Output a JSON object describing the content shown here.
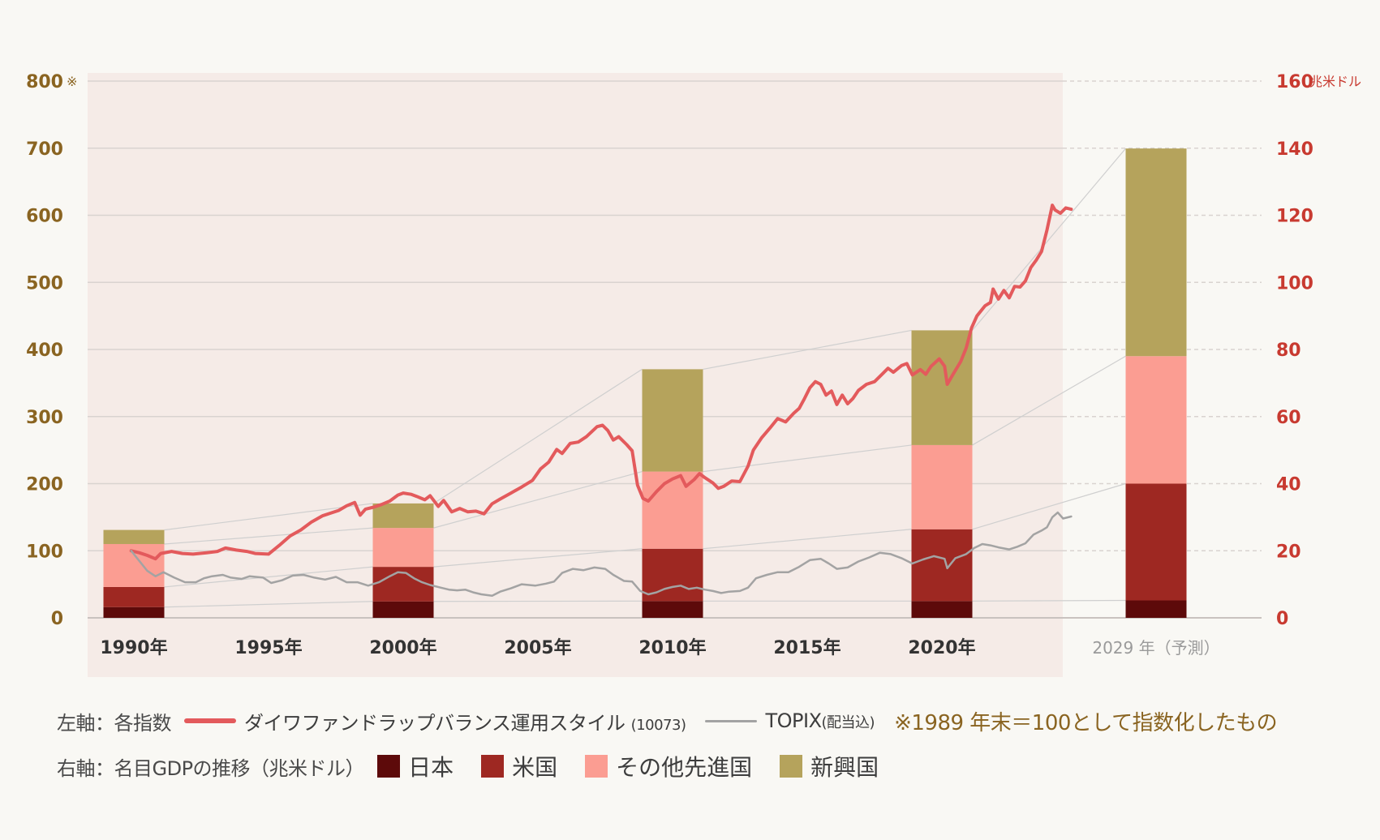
{
  "chart_data": {
    "type": "line+stacked-bar",
    "left_axis": {
      "ticks": [
        0,
        100,
        200,
        300,
        400,
        500,
        600,
        700,
        800
      ],
      "top_label_suffix": "※",
      "ylim": [
        0,
        800
      ]
    },
    "right_axis": {
      "ticks": [
        0,
        20,
        40,
        60,
        80,
        100,
        120,
        140,
        160
      ],
      "unit": "兆米ドル",
      "ylim": [
        0,
        160
      ]
    },
    "x_ticks": [
      {
        "year": 1990,
        "label": "1990年"
      },
      {
        "year": 1995,
        "label": "1995年"
      },
      {
        "year": 2000,
        "label": "2000年"
      },
      {
        "year": 2005,
        "label": "2005年"
      },
      {
        "year": 2010,
        "label": "2010年"
      },
      {
        "year": 2015,
        "label": "2015年"
      },
      {
        "year": 2020,
        "label": "2020年"
      }
    ],
    "forecast_label": "2029 年（予測）",
    "lines": [
      {
        "name": "ダイワファンドラップバランス運用スタイル",
        "code": "(10073)",
        "color": "#e35a5c",
        "points": [
          [
            1989.9,
            100
          ],
          [
            1990.2,
            97
          ],
          [
            1990.5,
            93
          ],
          [
            1990.8,
            88
          ],
          [
            1991.0,
            96
          ],
          [
            1991.4,
            99
          ],
          [
            1991.8,
            96
          ],
          [
            1992.2,
            95
          ],
          [
            1992.7,
            97
          ],
          [
            1993.1,
            99
          ],
          [
            1993.4,
            104
          ],
          [
            1993.8,
            101
          ],
          [
            1994.2,
            99
          ],
          [
            1994.5,
            96
          ],
          [
            1995.0,
            95
          ],
          [
            1995.4,
            108
          ],
          [
            1995.8,
            122
          ],
          [
            1996.2,
            131
          ],
          [
            1996.6,
            143
          ],
          [
            1997.0,
            152
          ],
          [
            1997.3,
            156
          ],
          [
            1997.6,
            160
          ],
          [
            1997.9,
            167
          ],
          [
            1998.2,
            172
          ],
          [
            1998.4,
            153
          ],
          [
            1998.6,
            162
          ],
          [
            1998.9,
            165
          ],
          [
            1999.2,
            169
          ],
          [
            1999.5,
            174
          ],
          [
            1999.8,
            183
          ],
          [
            2000.0,
            186
          ],
          [
            2000.3,
            184
          ],
          [
            2000.5,
            181
          ],
          [
            2000.8,
            176
          ],
          [
            2001.0,
            182
          ],
          [
            2001.3,
            166
          ],
          [
            2001.5,
            175
          ],
          [
            2001.8,
            158
          ],
          [
            2002.1,
            163
          ],
          [
            2002.4,
            158
          ],
          [
            2002.7,
            159
          ],
          [
            2003.0,
            155
          ],
          [
            2003.3,
            170
          ],
          [
            2003.6,
            177
          ],
          [
            2004.0,
            186
          ],
          [
            2004.4,
            195
          ],
          [
            2004.8,
            205
          ],
          [
            2005.1,
            222
          ],
          [
            2005.4,
            232
          ],
          [
            2005.7,
            251
          ],
          [
            2005.9,
            245
          ],
          [
            2006.2,
            260
          ],
          [
            2006.5,
            262
          ],
          [
            2006.8,
            270
          ],
          [
            2007.2,
            285
          ],
          [
            2007.4,
            287
          ],
          [
            2007.6,
            279
          ],
          [
            2007.8,
            265
          ],
          [
            2008.0,
            270
          ],
          [
            2008.3,
            258
          ],
          [
            2008.5,
            249
          ],
          [
            2008.7,
            198
          ],
          [
            2008.9,
            178
          ],
          [
            2009.1,
            174
          ],
          [
            2009.4,
            188
          ],
          [
            2009.7,
            200
          ],
          [
            2010.0,
            207
          ],
          [
            2010.3,
            212
          ],
          [
            2010.5,
            196
          ],
          [
            2010.8,
            206
          ],
          [
            2011.0,
            215
          ],
          [
            2011.2,
            209
          ],
          [
            2011.5,
            201
          ],
          [
            2011.7,
            193
          ],
          [
            2011.9,
            196
          ],
          [
            2012.2,
            204
          ],
          [
            2012.5,
            203
          ],
          [
            2012.8,
            226
          ],
          [
            2013.0,
            250
          ],
          [
            2013.3,
            268
          ],
          [
            2013.6,
            282
          ],
          [
            2013.9,
            297
          ],
          [
            2014.2,
            292
          ],
          [
            2014.5,
            305
          ],
          [
            2014.7,
            312
          ],
          [
            2014.9,
            327
          ],
          [
            2015.1,
            343
          ],
          [
            2015.3,
            352
          ],
          [
            2015.5,
            348
          ],
          [
            2015.7,
            332
          ],
          [
            2015.9,
            338
          ],
          [
            2016.1,
            318
          ],
          [
            2016.3,
            332
          ],
          [
            2016.5,
            319
          ],
          [
            2016.7,
            327
          ],
          [
            2016.9,
            339
          ],
          [
            2017.2,
            348
          ],
          [
            2017.5,
            352
          ],
          [
            2017.8,
            364
          ],
          [
            2018.0,
            372
          ],
          [
            2018.2,
            366
          ],
          [
            2018.5,
            376
          ],
          [
            2018.7,
            379
          ],
          [
            2018.9,
            362
          ],
          [
            2019.2,
            370
          ],
          [
            2019.4,
            363
          ],
          [
            2019.6,
            375
          ],
          [
            2019.9,
            386
          ],
          [
            2020.1,
            375
          ],
          [
            2020.2,
            348
          ],
          [
            2020.4,
            362
          ],
          [
            2020.7,
            382
          ],
          [
            2020.9,
            402
          ],
          [
            2021.1,
            432
          ],
          [
            2021.3,
            450
          ],
          [
            2021.6,
            465
          ],
          [
            2021.8,
            470
          ],
          [
            2021.9,
            490
          ],
          [
            2022.1,
            475
          ],
          [
            2022.3,
            488
          ],
          [
            2022.5,
            477
          ],
          [
            2022.7,
            494
          ],
          [
            2022.9,
            493
          ],
          [
            2023.1,
            502
          ],
          [
            2023.3,
            522
          ],
          [
            2023.5,
            533
          ],
          [
            2023.7,
            546
          ],
          [
            2023.9,
            578
          ],
          [
            2024.1,
            615
          ],
          [
            2024.2,
            608
          ],
          [
            2024.4,
            603
          ],
          [
            2024.6,
            611
          ],
          [
            2024.8,
            609
          ]
        ]
      },
      {
        "name": "TOPIX",
        "name_suffix": "(配当込)",
        "color": "#a3a3a3",
        "points": [
          [
            1989.9,
            100
          ],
          [
            1990.2,
            85
          ],
          [
            1990.5,
            70
          ],
          [
            1990.8,
            62
          ],
          [
            1991.1,
            68
          ],
          [
            1991.5,
            60
          ],
          [
            1991.9,
            53
          ],
          [
            1992.3,
            53
          ],
          [
            1992.6,
            59
          ],
          [
            1992.9,
            62
          ],
          [
            1993.3,
            64
          ],
          [
            1993.6,
            60
          ],
          [
            1994.0,
            58
          ],
          [
            1994.3,
            62
          ],
          [
            1994.8,
            60
          ],
          [
            1995.1,
            52
          ],
          [
            1995.5,
            56
          ],
          [
            1995.9,
            63
          ],
          [
            1996.3,
            64
          ],
          [
            1996.7,
            60
          ],
          [
            1997.1,
            57
          ],
          [
            1997.5,
            61
          ],
          [
            1997.9,
            53
          ],
          [
            1998.3,
            53
          ],
          [
            1998.7,
            48
          ],
          [
            1999.1,
            53
          ],
          [
            1999.5,
            62
          ],
          [
            1999.8,
            68
          ],
          [
            2000.1,
            67
          ],
          [
            2000.4,
            59
          ],
          [
            2000.7,
            53
          ],
          [
            2001.0,
            49
          ],
          [
            2001.4,
            45
          ],
          [
            2001.7,
            42
          ],
          [
            2002.0,
            41
          ],
          [
            2002.3,
            42
          ],
          [
            2002.6,
            38
          ],
          [
            2002.9,
            35
          ],
          [
            2003.3,
            33
          ],
          [
            2003.6,
            39
          ],
          [
            2004.0,
            44
          ],
          [
            2004.4,
            50
          ],
          [
            2004.9,
            48
          ],
          [
            2005.3,
            51
          ],
          [
            2005.6,
            54
          ],
          [
            2005.9,
            67
          ],
          [
            2006.3,
            73
          ],
          [
            2006.7,
            71
          ],
          [
            2007.1,
            75
          ],
          [
            2007.5,
            73
          ],
          [
            2007.8,
            64
          ],
          [
            2008.2,
            55
          ],
          [
            2008.5,
            54
          ],
          [
            2008.8,
            40
          ],
          [
            2009.1,
            35
          ],
          [
            2009.4,
            38
          ],
          [
            2009.7,
            43
          ],
          [
            2010.0,
            46
          ],
          [
            2010.3,
            48
          ],
          [
            2010.6,
            43
          ],
          [
            2010.9,
            45
          ],
          [
            2011.2,
            42
          ],
          [
            2011.5,
            40
          ],
          [
            2011.8,
            37
          ],
          [
            2012.1,
            39
          ],
          [
            2012.5,
            40
          ],
          [
            2012.8,
            45
          ],
          [
            2013.1,
            59
          ],
          [
            2013.5,
            64
          ],
          [
            2013.9,
            68
          ],
          [
            2014.3,
            68
          ],
          [
            2014.7,
            76
          ],
          [
            2015.1,
            86
          ],
          [
            2015.5,
            88
          ],
          [
            2015.8,
            81
          ],
          [
            2016.1,
            73
          ],
          [
            2016.5,
            75
          ],
          [
            2016.9,
            84
          ],
          [
            2017.3,
            90
          ],
          [
            2017.7,
            97
          ],
          [
            2018.1,
            95
          ],
          [
            2018.5,
            89
          ],
          [
            2018.9,
            81
          ],
          [
            2019.3,
            87
          ],
          [
            2019.7,
            92
          ],
          [
            2020.1,
            88
          ],
          [
            2020.2,
            74
          ],
          [
            2020.5,
            89
          ],
          [
            2020.9,
            95
          ],
          [
            2021.2,
            104
          ],
          [
            2021.5,
            110
          ],
          [
            2021.8,
            108
          ],
          [
            2022.1,
            105
          ],
          [
            2022.5,
            102
          ],
          [
            2022.8,
            106
          ],
          [
            2023.1,
            111
          ],
          [
            2023.4,
            124
          ],
          [
            2023.7,
            130
          ],
          [
            2023.9,
            135
          ],
          [
            2024.1,
            150
          ],
          [
            2024.3,
            157
          ],
          [
            2024.5,
            148
          ],
          [
            2024.8,
            151
          ]
        ]
      }
    ],
    "gdp_bars": {
      "unit": "兆米ドル",
      "segments": [
        {
          "name": "日本",
          "color": "#5d0a0a"
        },
        {
          "name": "米国",
          "color": "#9e2822"
        },
        {
          "name": "その他先進国",
          "color": "#fb9d92"
        },
        {
          "name": "新興国",
          "color": "#b5a35c"
        }
      ],
      "bars": [
        {
          "year": 1990,
          "values": [
            3.2,
            6.0,
            12.8,
            4.2
          ]
        },
        {
          "year": 2000,
          "values": [
            4.9,
            10.3,
            11.6,
            7.3
          ]
        },
        {
          "year": 2010,
          "values": [
            5.0,
            15.6,
            23.0,
            30.5
          ]
        },
        {
          "year": 2020,
          "values": [
            5.0,
            21.4,
            25.1,
            34.2
          ]
        },
        {
          "year": 2029,
          "values": [
            5.2,
            34.8,
            38.0,
            61.9
          ]
        }
      ]
    },
    "grid": true
  },
  "legend": {
    "row1": {
      "label": "左軸：各指数",
      "line1_name": "ダイワファンドラップバランス運用スタイル",
      "line1_code": "(10073)",
      "line2_name": "TOPIX",
      "line2_suffix": "(配当込)",
      "note": "※1989 年末＝100として指数化したもの"
    },
    "row2": {
      "label": "右軸：名目GDPの推移（兆米ドル）",
      "items": [
        "日本",
        "米国",
        "その他先進国",
        "新興国"
      ]
    }
  },
  "colors": {
    "background": "#f9f8f4",
    "plot_shade": "#f5ebe7",
    "left_axis_text": "#8a6421",
    "right_axis_text": "#c83a30",
    "forecast_text": "#9a9a9a",
    "grid": "#d9d3d0",
    "connector": "#cfcfcf"
  }
}
